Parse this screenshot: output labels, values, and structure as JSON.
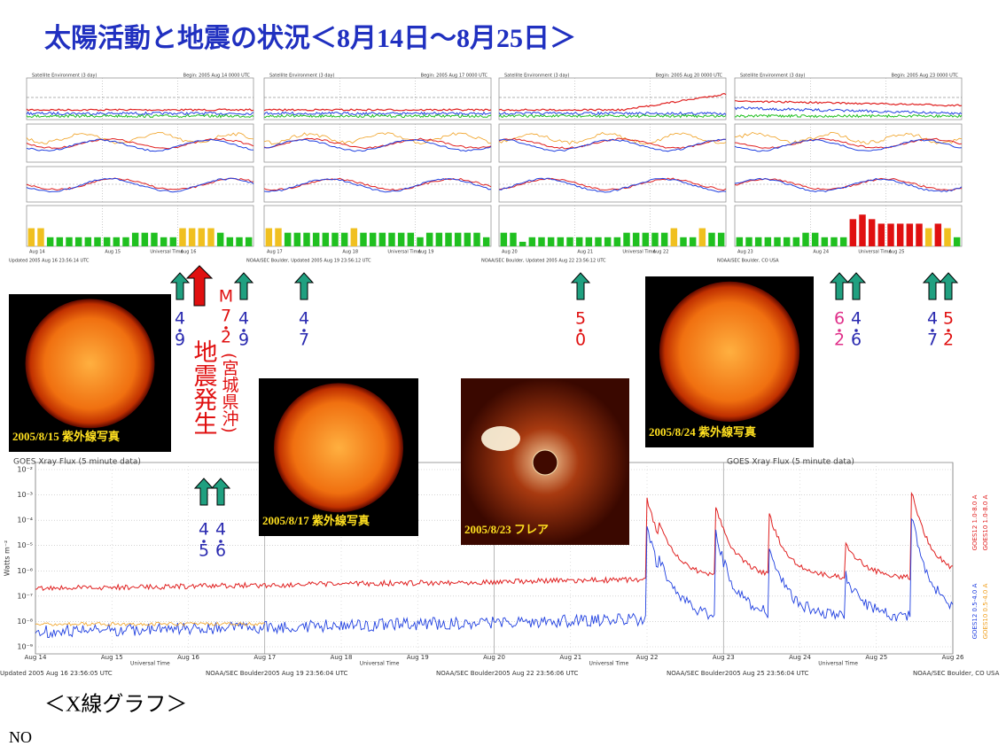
{
  "title": "太陽活動と地震の状況＜8月14日～8月25日＞",
  "panel_header": "Satellite Environment (3 day)",
  "panel_time_label": "Universal Time",
  "kp_ylim": [
    0,
    9
  ],
  "panels": [
    {
      "begin": "Begin: 2005 Aug 14 0000 UTC",
      "dates": [
        "Aug 14",
        "Aug 15",
        "Aug 16"
      ],
      "footer": "Updated 2005 Aug 16 23:56:14 UTC",
      "kp": [
        4,
        4,
        2,
        2,
        2,
        2,
        2,
        2,
        2,
        2,
        2,
        3,
        3,
        3,
        2,
        2,
        4,
        4,
        4,
        4,
        3,
        2,
        2,
        2
      ]
    },
    {
      "begin": "Begin: 2005 Aug 17 0000 UTC",
      "dates": [
        "Aug 17",
        "Aug 18",
        "Aug 19"
      ],
      "footer": "NOAA/SEC Boulder, Updated 2005 Aug 19 23:56:12 UTC",
      "kp": [
        4,
        4,
        3,
        3,
        3,
        3,
        3,
        3,
        3,
        4,
        3,
        3,
        3,
        3,
        3,
        3,
        2,
        3,
        3,
        3,
        3,
        3,
        3,
        2
      ]
    },
    {
      "begin": "Begin: 2005 Aug 20 0000 UTC",
      "dates": [
        "Aug 20",
        "Aug 21",
        "Aug 22"
      ],
      "footer": "NOAA/SEC Boulder, Updated 2005 Aug 22 23:56:12 UTC",
      "kp": [
        3,
        3,
        1,
        2,
        2,
        2,
        2,
        2,
        2,
        2,
        2,
        2,
        2,
        3,
        3,
        3,
        3,
        3,
        4,
        2,
        2,
        4,
        3,
        3
      ]
    },
    {
      "begin": "Begin: 2005 Aug 23 0000 UTC",
      "dates": [
        "Aug 23",
        "Aug 24",
        "Aug 25"
      ],
      "footer": "NOAA/SEC Boulder, CO USA",
      "kp": [
        2,
        2,
        2,
        2,
        2,
        2,
        2,
        3,
        3,
        2,
        2,
        2,
        6,
        7,
        6,
        5,
        5,
        5,
        5,
        5,
        4,
        5,
        4,
        2
      ]
    }
  ],
  "quakes": [
    {
      "digits": [
        "4",
        "9"
      ],
      "color": "#2a2ab0"
    },
    {
      "digits": [
        "M",
        "7",
        "2"
      ],
      "color": "#e01010"
    },
    {
      "digits": [
        "4",
        "9"
      ],
      "color": "#2a2ab0"
    },
    {
      "digits": [
        "4",
        "7"
      ],
      "color": "#2a2ab0"
    },
    {
      "digits": [
        "5",
        "0"
      ],
      "color": "#e01010"
    },
    {
      "digits": [
        "6",
        "2"
      ],
      "color": "#e0308a"
    },
    {
      "digits": [
        "4",
        "6"
      ],
      "color": "#2a2ab0"
    },
    {
      "digits": [
        "4",
        "7"
      ],
      "color": "#2a2ab0"
    },
    {
      "digits": [
        "5",
        "2"
      ],
      "color": "#e01010"
    },
    {
      "digits": [
        "4",
        "5"
      ],
      "color": "#2a2ab0"
    },
    {
      "digits": [
        "4",
        "6"
      ],
      "color": "#2a2ab0"
    }
  ],
  "quake_note": "地震発生",
  "quake_place": "(宮城県沖)",
  "images": [
    {
      "caption": "2005/8/15  紫外線写真"
    },
    {
      "caption": "2005/8/17  紫外線写真"
    },
    {
      "caption": "2005/8/23  フレア"
    },
    {
      "caption": "2005/8/24  紫外線写真"
    }
  ],
  "xray": {
    "title": "GOES Xray Flux (5 minute data)",
    "ylabel": "Watts m⁻²",
    "xlabel": "Universal Time",
    "categories": [
      "Aug 14",
      "Aug 15",
      "Aug 16",
      "Aug 17",
      "Aug 18",
      "Aug 19",
      "Aug 20",
      "Aug 21",
      "Aug 22",
      "Aug 23",
      "Aug 24",
      "Aug 25",
      "Aug 26"
    ],
    "log": true,
    "ylim": [
      1e-09,
      0.01
    ],
    "yticks": [
      {
        "value": 0.01,
        "label": "10⁻²"
      },
      {
        "value": 0.001,
        "label": "10⁻³"
      },
      {
        "value": 0.0001,
        "label": "10⁻⁴"
      },
      {
        "value": 1e-05,
        "label": "10⁻⁵"
      },
      {
        "value": 1e-06,
        "label": "10⁻⁶"
      },
      {
        "value": 1e-07,
        "label": "10⁻⁷"
      },
      {
        "value": 1e-08,
        "label": "10⁻⁸"
      },
      {
        "value": 1e-09,
        "label": "10⁻⁹"
      }
    ],
    "legend": [
      {
        "name": "GOES12 1.0-8.0 A",
        "color": "#e02020"
      },
      {
        "name": "GOES10 1.0-8.0 A",
        "color": "#e02020"
      },
      {
        "name": "GOES12 0.5-4.0 A",
        "color": "#2040e0"
      },
      {
        "name": "GOES10 0.5-4.0 A",
        "color": "#f0a020"
      }
    ],
    "footers": [
      "Updated 2005 Aug 16 23:56:05 UTC",
      "NOAA/SEC Boulder2005 Aug 19 23:56:04 UTC",
      "NOAA/SEC Boulder2005 Aug 22 23:56:06 UTC",
      "NOAA/SEC Boulder2005 Aug 25 23:56:04 UTC",
      "NOAA/SEC Boulder, CO USA"
    ]
  },
  "caption": "＜X線グラフ＞",
  "note": "NO"
}
